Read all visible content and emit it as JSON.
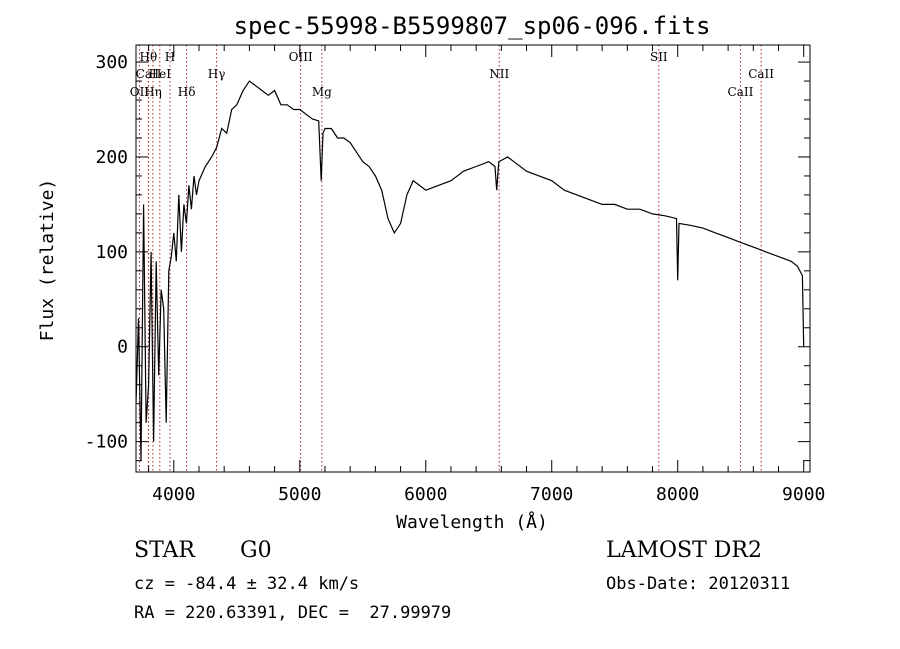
{
  "chart_data": {
    "type": "line",
    "title": "spec-55998-B5599807_sp06-096.fits",
    "xlabel": "Wavelength (Å)",
    "ylabel": "Flux (relative)",
    "xlim": [
      3700,
      9050
    ],
    "ylim": [
      -132,
      318
    ],
    "xticks": [
      4000,
      5000,
      6000,
      7000,
      8000,
      9000
    ],
    "yticks": [
      -100,
      0,
      100,
      200,
      300
    ],
    "series": [
      {
        "x": [
          3700,
          3720,
          3740,
          3760,
          3780,
          3800,
          3820,
          3840,
          3860,
          3880,
          3900,
          3920,
          3940,
          3960,
          3980,
          4000,
          4020,
          4040,
          4060,
          4080,
          4100,
          4120,
          4140,
          4160,
          4180,
          4200,
          4250,
          4300,
          4340,
          4380,
          4420,
          4460,
          4500,
          4550,
          4600,
          4650,
          4700,
          4750,
          4800,
          4850,
          4900,
          4950,
          5000,
          5050,
          5100,
          5150,
          5170,
          5184,
          5200,
          5250,
          5300,
          5350,
          5400,
          5450,
          5500,
          5550,
          5600,
          5650,
          5700,
          5750,
          5800,
          5850,
          5900,
          5950,
          6000,
          6100,
          6200,
          6300,
          6400,
          6500,
          6550,
          6563,
          6580,
          6650,
          6700,
          6800,
          6900,
          7000,
          7100,
          7200,
          7300,
          7400,
          7500,
          7600,
          7700,
          7800,
          7900,
          7990,
          8000,
          8010,
          8100,
          8200,
          8300,
          8400,
          8500,
          8600,
          8700,
          8800,
          8900,
          8950,
          8990,
          9000
        ],
        "values": [
          -60,
          30,
          -120,
          150,
          -80,
          -40,
          100,
          -100,
          90,
          -30,
          60,
          40,
          -80,
          80,
          95,
          120,
          90,
          160,
          100,
          150,
          130,
          170,
          145,
          180,
          160,
          175,
          190,
          200,
          210,
          230,
          225,
          250,
          255,
          270,
          280,
          275,
          270,
          265,
          270,
          255,
          255,
          250,
          250,
          245,
          240,
          238,
          175,
          225,
          230,
          230,
          220,
          220,
          215,
          205,
          195,
          190,
          180,
          165,
          135,
          120,
          130,
          160,
          175,
          170,
          165,
          170,
          175,
          185,
          190,
          195,
          190,
          165,
          195,
          200,
          195,
          185,
          180,
          175,
          165,
          160,
          155,
          150,
          150,
          145,
          145,
          140,
          138,
          135,
          70,
          130,
          128,
          125,
          120,
          115,
          110,
          105,
          100,
          95,
          90,
          85,
          75,
          0
        ]
      }
    ],
    "lines": [
      {
        "name": "Hθ",
        "x": 3798,
        "row": 0
      },
      {
        "name": "H",
        "x": 3970,
        "row": 0
      },
      {
        "name": "CaII",
        "x": 3800,
        "row": 1
      },
      {
        "name": "HeI",
        "x": 3889,
        "row": 1
      },
      {
        "name": "OII",
        "x": 3727,
        "row": 2
      },
      {
        "name": "Hη",
        "x": 3835,
        "row": 2
      },
      {
        "name": "Hδ",
        "x": 4102,
        "row": 2
      },
      {
        "name": "Hγ",
        "x": 4340,
        "row": 1
      },
      {
        "name": "OIII",
        "x": 5007,
        "row": 0
      },
      {
        "name": "Mg",
        "x": 5175,
        "row": 2
      },
      {
        "name": "NII",
        "x": 6583,
        "row": 1
      },
      {
        "name": "SII",
        "x": 7850,
        "row": 0
      },
      {
        "name": "CaII",
        "x": 8498,
        "row": 2
      },
      {
        "name": "CaII",
        "x": 8662,
        "row": 1
      }
    ],
    "grid": false
  },
  "info": {
    "object_class": "STAR",
    "subclass": "G0",
    "survey": "LAMOST DR2",
    "redshift": "cz = -84.4 ± 32.4 km/s",
    "obs_date": "Obs-Date: 20120311",
    "coords": "RA = 220.63391, DEC =  27.99979"
  }
}
